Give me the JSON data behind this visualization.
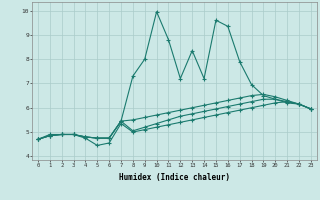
{
  "xlabel": "Humidex (Indice chaleur)",
  "background_color": "#cce8e6",
  "grid_color": "#aaccca",
  "line_color": "#1a7a6e",
  "xlim": [
    -0.5,
    23.5
  ],
  "ylim": [
    3.85,
    10.35
  ],
  "line1_y": [
    4.7,
    4.9,
    4.9,
    4.9,
    4.75,
    4.45,
    4.55,
    5.35,
    5.0,
    5.1,
    5.2,
    5.3,
    5.4,
    5.5,
    5.6,
    5.7,
    5.8,
    5.9,
    6.0,
    6.1,
    6.2,
    6.25,
    6.15,
    5.95
  ],
  "line2_y": [
    4.7,
    4.85,
    4.9,
    4.9,
    4.8,
    4.75,
    4.75,
    5.45,
    7.3,
    8.0,
    9.95,
    8.8,
    7.2,
    8.35,
    7.2,
    9.6,
    9.35,
    7.9,
    6.95,
    6.5,
    6.35,
    6.2,
    6.15,
    5.95
  ],
  "line3_y": [
    4.7,
    4.85,
    4.9,
    4.9,
    4.8,
    4.75,
    4.75,
    5.45,
    5.05,
    5.2,
    5.35,
    5.5,
    5.65,
    5.75,
    5.85,
    5.95,
    6.05,
    6.15,
    6.25,
    6.35,
    6.35,
    6.25,
    6.15,
    5.95
  ],
  "line4_y": [
    4.7,
    4.85,
    4.9,
    4.9,
    4.8,
    4.75,
    4.75,
    5.45,
    5.5,
    5.6,
    5.7,
    5.8,
    5.9,
    6.0,
    6.1,
    6.2,
    6.3,
    6.4,
    6.5,
    6.55,
    6.45,
    6.3,
    6.15,
    5.95
  ]
}
